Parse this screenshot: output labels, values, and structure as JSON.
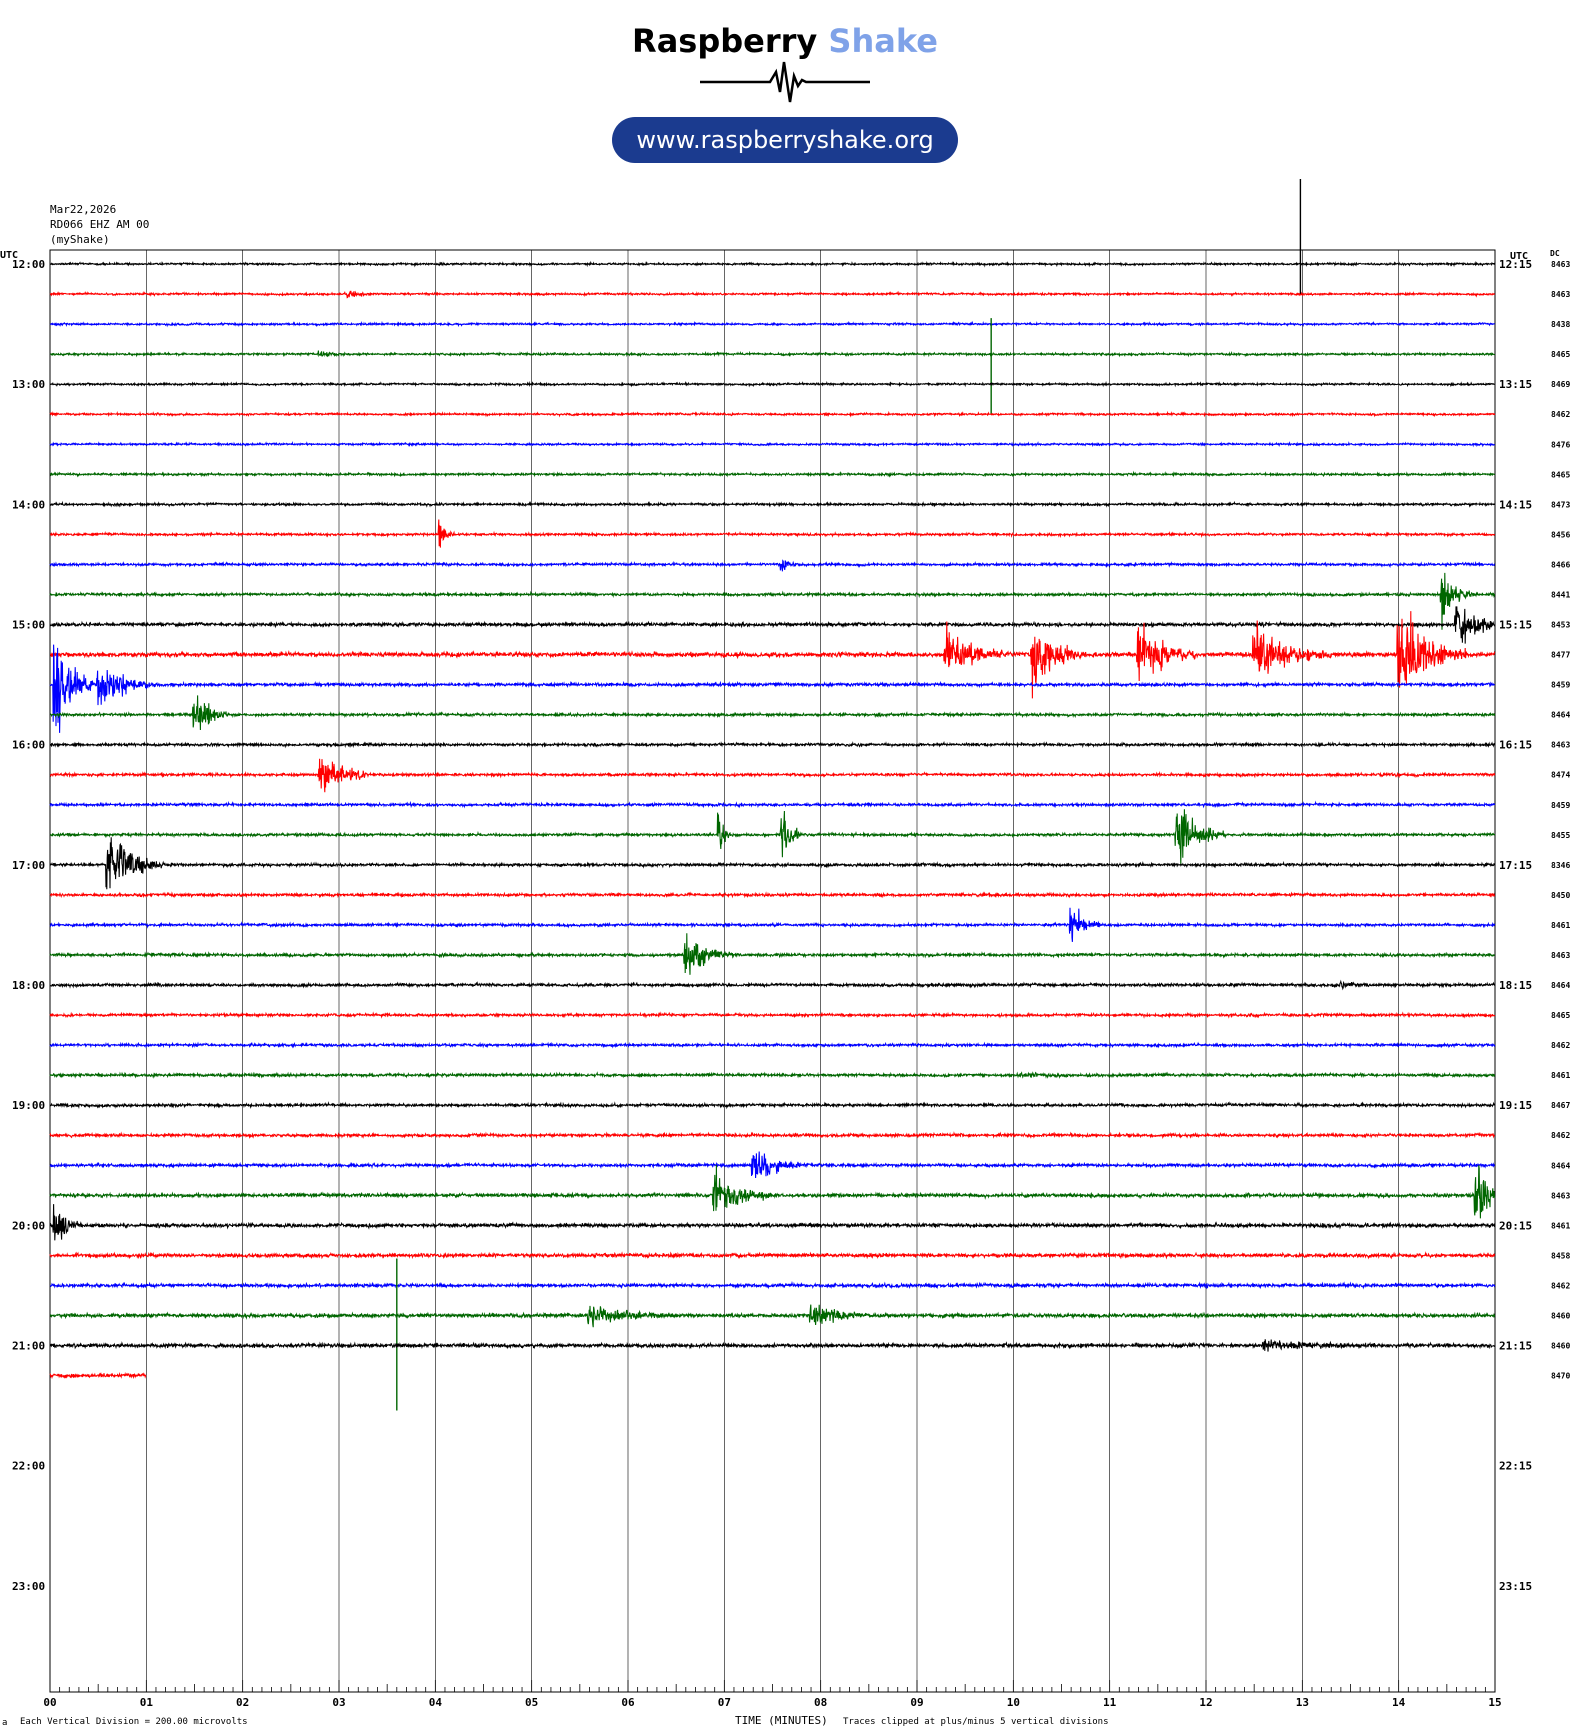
{
  "logo": {
    "word1": "Raspberry",
    "word2": "Shake",
    "url": "www.raspberryshake.org",
    "colors": {
      "word2": "#7fa2e8",
      "pill": "#1b3b8f"
    }
  },
  "header": {
    "date": "Mar22,2026",
    "station": "RD066 EHZ AM 00",
    "source": "(myShake)"
  },
  "footer": {
    "scale": "Each Vertical Division =  200.00 microvolts",
    "xaxis_title": "TIME (MINUTES)",
    "clip_note": "Traces clipped at plus/minus 5 vertical divisions",
    "corner": "a"
  },
  "chart_data": {
    "type": "line",
    "title": "",
    "xlabel": "TIME (MINUTES)",
    "xlim": [
      0,
      15
    ],
    "x_ticks": [
      "00",
      "01",
      "02",
      "03",
      "04",
      "05",
      "06",
      "07",
      "08",
      "09",
      "10",
      "11",
      "12",
      "13",
      "14",
      "15"
    ],
    "left_axis_label": "UTC",
    "right_axis_label": "UTC",
    "dc_label": "DC",
    "hour_labels_left": [
      "12:00",
      "13:00",
      "14:00",
      "15:00",
      "16:00",
      "17:00",
      "18:00",
      "19:00",
      "20:00",
      "21:00",
      "22:00",
      "23:00"
    ],
    "hour_labels_right": [
      "12:15",
      "13:15",
      "14:15",
      "15:15",
      "16:15",
      "17:15",
      "18:15",
      "19:15",
      "20:15",
      "21:15",
      "22:15",
      "23:15"
    ],
    "trace_colors": [
      "#000000",
      "#ff0000",
      "#0000ff",
      "#006600"
    ],
    "traces_per_hour": 4,
    "total_rows": 48,
    "trace_count": 38,
    "last_trace_end_minute": 1.0,
    "dc_values": [
      "8463",
      "8463",
      "8438",
      "8465",
      "8469",
      "8462",
      "8476",
      "8465",
      "8473",
      "8456",
      "8466",
      "8441",
      "8453",
      "8477",
      "8459",
      "8464",
      "8463",
      "8474",
      "8459",
      "8455",
      "8346",
      "8450",
      "8461",
      "8463",
      "8464",
      "8465",
      "8462",
      "8461",
      "8467",
      "8462",
      "8464",
      "8463",
      "8461",
      "8458",
      "8462",
      "8460",
      "8460",
      "8470"
    ],
    "noise_levels": [
      1.0,
      1.0,
      1.0,
      1.1,
      1.0,
      1.0,
      1.0,
      1.1,
      1.2,
      1.2,
      1.3,
      1.4,
      1.8,
      2.4,
      1.6,
      1.4,
      1.4,
      1.4,
      1.4,
      1.4,
      1.5,
      1.5,
      1.4,
      1.5,
      1.5,
      1.4,
      1.4,
      1.5,
      1.5,
      1.6,
      1.6,
      1.9,
      2.0,
      2.0,
      1.8,
      2.0,
      2.0,
      2.0
    ],
    "events": [
      {
        "row": 0,
        "minute": 12.98,
        "amplitude": 30,
        "duration": 0.03,
        "spike": true,
        "extend_up": 85
      },
      {
        "row": 1,
        "minute": 3.1,
        "amplitude": 4,
        "duration": 0.3
      },
      {
        "row": 3,
        "minute": 2.8,
        "amplitude": 3,
        "duration": 0.3
      },
      {
        "row": 3,
        "minute": 9.77,
        "amplitude": 60,
        "duration": 0.05,
        "spike": true
      },
      {
        "row": 9,
        "minute": 4.05,
        "amplitude": 18,
        "duration": 0.15
      },
      {
        "row": 10,
        "minute": 7.6,
        "amplitude": 8,
        "duration": 0.2
      },
      {
        "row": 11,
        "minute": 14.45,
        "amplitude": 35,
        "duration": 0.3
      },
      {
        "row": 12,
        "minute": 14.6,
        "amplitude": 25,
        "duration": 0.6
      },
      {
        "row": 13,
        "minute": 9.3,
        "amplitude": 30,
        "duration": 0.6
      },
      {
        "row": 13,
        "minute": 10.2,
        "amplitude": 45,
        "duration": 0.5
      },
      {
        "row": 13,
        "minute": 11.3,
        "amplitude": 35,
        "duration": 0.6
      },
      {
        "row": 13,
        "minute": 12.5,
        "amplitude": 35,
        "duration": 0.8
      },
      {
        "row": 13,
        "minute": 14.0,
        "amplitude": 60,
        "duration": 0.7
      },
      {
        "row": 14,
        "minute": 0.05,
        "amplitude": 70,
        "duration": 0.4
      },
      {
        "row": 14,
        "minute": 0.5,
        "amplitude": 30,
        "duration": 0.6
      },
      {
        "row": 15,
        "minute": 1.5,
        "amplitude": 25,
        "duration": 0.4
      },
      {
        "row": 17,
        "minute": 2.8,
        "amplitude": 35,
        "duration": 0.5
      },
      {
        "row": 19,
        "minute": 6.95,
        "amplitude": 25,
        "duration": 0.15
      },
      {
        "row": 19,
        "minute": 7.6,
        "amplitude": 45,
        "duration": 0.2
      },
      {
        "row": 19,
        "minute": 11.7,
        "amplitude": 40,
        "duration": 0.5
      },
      {
        "row": 20,
        "minute": 0.6,
        "amplitude": 40,
        "duration": 0.6
      },
      {
        "row": 22,
        "minute": 10.6,
        "amplitude": 25,
        "duration": 0.3
      },
      {
        "row": 23,
        "minute": 6.6,
        "amplitude": 25,
        "duration": 0.5
      },
      {
        "row": 24,
        "minute": 13.4,
        "amplitude": 4,
        "duration": 0.3
      },
      {
        "row": 27,
        "minute": 10.1,
        "amplitude": 3,
        "duration": 0.4
      },
      {
        "row": 30,
        "minute": 7.3,
        "amplitude": 20,
        "duration": 0.5
      },
      {
        "row": 31,
        "minute": 6.9,
        "amplitude": 25,
        "duration": 0.6
      },
      {
        "row": 31,
        "minute": 14.8,
        "amplitude": 45,
        "duration": 0.3
      },
      {
        "row": 32,
        "minute": 0.05,
        "amplitude": 25,
        "duration": 0.3
      },
      {
        "row": 35,
        "minute": 3.6,
        "amplitude": 95,
        "duration": 0.05,
        "spike": true
      },
      {
        "row": 35,
        "minute": 5.6,
        "amplitude": 12,
        "duration": 0.9
      },
      {
        "row": 35,
        "minute": 7.9,
        "amplitude": 15,
        "duration": 0.6
      },
      {
        "row": 36,
        "minute": 12.6,
        "amplitude": 5,
        "duration": 1.2
      }
    ]
  }
}
